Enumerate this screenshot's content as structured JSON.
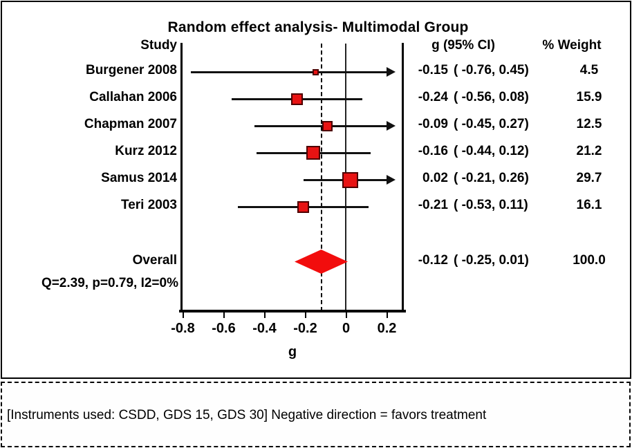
{
  "title": "Random effect analysis- Multimodal Group",
  "columns": {
    "study": "Study",
    "effect": "g (95% CI)",
    "weight": "% Weight"
  },
  "overall_label": "Overall",
  "heterogeneity": "Q=2.39, p=0.79, I2=0%",
  "axis_label": "g",
  "footnote": "[Instruments used: CSDD, GDS 15, GDS 30] Negative direction = favors treatment",
  "colors": {
    "marker_fill": "#e81313",
    "marker_border": "#4d0000",
    "diamond": "#f20d0d",
    "line": "#000000"
  },
  "chart_data": {
    "type": "forest",
    "title": "Random effect analysis- Multimodal Group",
    "xlabel": "g",
    "x_ticks": [
      -0.8,
      -0.6,
      -0.4,
      -0.2,
      0,
      0.2
    ],
    "x_tick_labels": [
      "-0.8",
      "-0.6",
      "-0.4",
      "-0.2",
      "0",
      "0.2"
    ],
    "x_range": [
      -0.82,
      0.28
    ],
    "zero_line": 0,
    "overall_effect_line": -0.12,
    "studies": [
      {
        "study": "Burgener 2008",
        "g": -0.15,
        "ci_low": -0.76,
        "ci_high": 0.45,
        "g_text": "-0.15",
        "ci_text": "( -0.76, 0.45)",
        "weight": 4.5,
        "weight_text": "4.5",
        "arrow_right": true
      },
      {
        "study": "Callahan 2006",
        "g": -0.24,
        "ci_low": -0.56,
        "ci_high": 0.08,
        "g_text": "-0.24",
        "ci_text": "( -0.56, 0.08)",
        "weight": 15.9,
        "weight_text": "15.9",
        "arrow_right": false
      },
      {
        "study": "Chapman 2007",
        "g": -0.09,
        "ci_low": -0.45,
        "ci_high": 0.27,
        "g_text": "-0.09",
        "ci_text": "( -0.45, 0.27)",
        "weight": 12.5,
        "weight_text": "12.5",
        "arrow_right": true
      },
      {
        "study": "Kurz 2012",
        "g": -0.16,
        "ci_low": -0.44,
        "ci_high": 0.12,
        "g_text": "-0.16",
        "ci_text": "( -0.44, 0.12)",
        "weight": 21.2,
        "weight_text": "21.2",
        "arrow_right": false
      },
      {
        "study": "Samus 2014",
        "g": 0.02,
        "ci_low": -0.21,
        "ci_high": 0.26,
        "g_text": "0.02",
        "ci_text": "( -0.21, 0.26)",
        "weight": 29.7,
        "weight_text": "29.7",
        "arrow_right": true
      },
      {
        "study": "Teri 2003",
        "g": -0.21,
        "ci_low": -0.53,
        "ci_high": 0.11,
        "g_text": "-0.21",
        "ci_text": "( -0.53, 0.11)",
        "weight": 16.1,
        "weight_text": "16.1",
        "arrow_right": false
      }
    ],
    "overall": {
      "label": "Overall",
      "g": -0.12,
      "ci_low": -0.25,
      "ci_high": 0.01,
      "g_text": "-0.12",
      "ci_text": "( -0.25, 0.01)",
      "weight_text": "100.0"
    },
    "heterogeneity": {
      "Q": 2.39,
      "p": 0.79,
      "I2": "0%"
    },
    "legend_position": "none",
    "grid": false
  }
}
